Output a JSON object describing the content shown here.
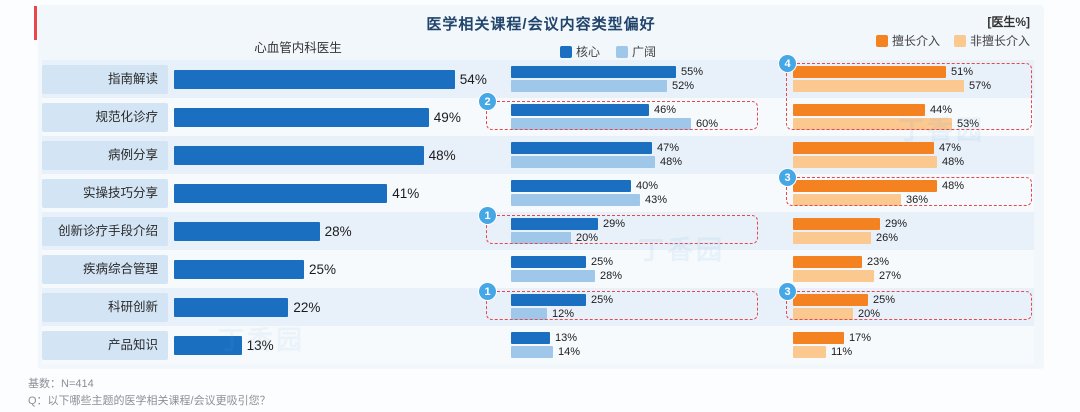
{
  "title": "医学相关课程/会议内容类型偏好",
  "unit_note": "[医生%]",
  "panel_label": "心血管内科医生",
  "watermark": "丁香园",
  "colors": {
    "primary_blue": "#1b6fc1",
    "light_blue": "#9ec7ea",
    "orange": "#f58220",
    "light_orange": "#fbc88f",
    "highlight": "#e8474c",
    "badge": "#45a7e6",
    "row_label_bg": "#d3e4f5"
  },
  "legend_middle": [
    {
      "label": "核心",
      "color": "#1b6fc1"
    },
    {
      "label": "广阔",
      "color": "#9ec7ea"
    }
  ],
  "legend_right": [
    {
      "label": "擅长介入",
      "color": "#f58220"
    },
    {
      "label": "非擅长介入",
      "color": "#fbc88f"
    }
  ],
  "footer": {
    "base": "基数：N=414",
    "question": "Q：以下哪些主题的医学相关课程/会议更吸引您？"
  },
  "chart_data": {
    "type": "bar",
    "orientation": "horizontal",
    "value_suffix": "%",
    "xlim": [
      0,
      65
    ],
    "categories": [
      "指南解读",
      "规范化诊疗",
      "病例分享",
      "实操技巧分享",
      "创新诊疗手段介绍",
      "疾病综合管理",
      "科研创新",
      "产品知识"
    ],
    "panels": [
      {
        "name": "心血管内科医生",
        "series": [
          {
            "name": "心血管内科医生",
            "color": "#1b6fc1",
            "values": [
              54,
              49,
              48,
              41,
              28,
              25,
              22,
              13
            ]
          }
        ]
      },
      {
        "name": "核心/广阔",
        "series": [
          {
            "name": "核心",
            "color": "#1b6fc1",
            "values": [
              55,
              46,
              47,
              40,
              29,
              25,
              25,
              13
            ]
          },
          {
            "name": "广阔",
            "color": "#9ec7ea",
            "values": [
              52,
              60,
              48,
              43,
              20,
              28,
              12,
              14
            ]
          }
        ]
      },
      {
        "name": "擅长介入/非擅长介入",
        "series": [
          {
            "name": "擅长介入",
            "color": "#f58220",
            "values": [
              51,
              44,
              47,
              48,
              29,
              23,
              25,
              17
            ]
          },
          {
            "name": "非擅长介入",
            "color": "#fbc88f",
            "values": [
              57,
              53,
              48,
              36,
              26,
              27,
              20,
              11
            ]
          }
        ]
      }
    ],
    "annotations": [
      {
        "panel": 1,
        "row_start": 1,
        "row_span": 1,
        "badge": "2"
      },
      {
        "panel": 1,
        "row_start": 4,
        "row_span": 1,
        "badge": "1"
      },
      {
        "panel": 1,
        "row_start": 6,
        "row_span": 1,
        "badge": "1"
      },
      {
        "panel": 2,
        "row_start": 0,
        "row_span": 2,
        "badge": "4"
      },
      {
        "panel": 2,
        "row_start": 3,
        "row_span": 1,
        "badge": "3"
      },
      {
        "panel": 2,
        "row_start": 6,
        "row_span": 1,
        "badge": "3"
      }
    ]
  }
}
